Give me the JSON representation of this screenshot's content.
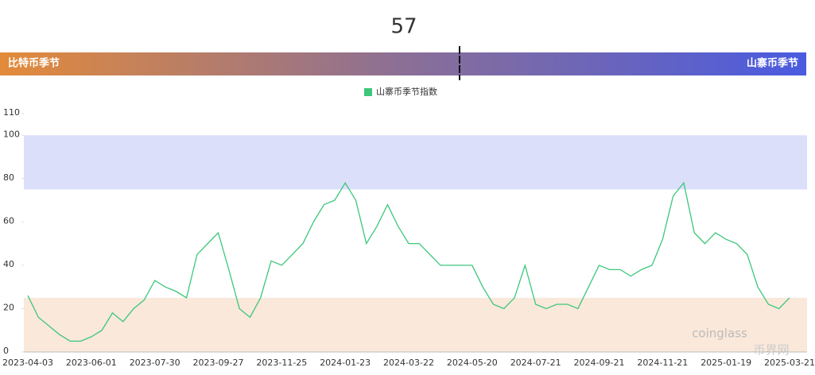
{
  "gauge": {
    "value": 57,
    "range": [
      0,
      100
    ],
    "left_label": "比特币季节",
    "right_label": "山寨币季节"
  },
  "watermarks": [
    "coinglass",
    "币界网"
  ],
  "chart_data": {
    "type": "line",
    "categories": [
      "2023-04-03",
      null,
      null,
      null,
      null,
      null,
      "2023-06-01",
      null,
      null,
      null,
      null,
      null,
      "2023-07-30",
      null,
      null,
      null,
      null,
      null,
      "2023-09-27",
      null,
      null,
      null,
      null,
      null,
      "2023-11-25",
      null,
      null,
      null,
      null,
      null,
      "2024-01-23",
      null,
      null,
      null,
      null,
      null,
      "2024-03-22",
      null,
      null,
      null,
      null,
      null,
      "2024-05-20",
      null,
      null,
      null,
      null,
      null,
      "2024-07-21",
      null,
      null,
      null,
      null,
      null,
      "2024-09-21",
      null,
      null,
      null,
      null,
      null,
      "2024-11-21",
      null,
      null,
      null,
      null,
      null,
      "2025-01-19",
      null,
      null,
      null,
      null,
      null,
      "2025-03-21"
    ],
    "series": [
      {
        "name": "山寨币季节指数",
        "color": "#3cc77a",
        "values": [
          26,
          16,
          12,
          8,
          5,
          5,
          7,
          10,
          18,
          14,
          20,
          24,
          33,
          30,
          28,
          25,
          45,
          50,
          55,
          38,
          20,
          16,
          25,
          42,
          40,
          45,
          50,
          60,
          68,
          70,
          78,
          70,
          50,
          58,
          68,
          58,
          50,
          50,
          45,
          40,
          40,
          40,
          40,
          30,
          22,
          20,
          25,
          40,
          22,
          20,
          22,
          22,
          20,
          30,
          40,
          38,
          38,
          35,
          38,
          40,
          52,
          72,
          78,
          55,
          50,
          55,
          52,
          50,
          45,
          30,
          22,
          20,
          25
        ]
      }
    ],
    "bands": [
      {
        "from": 0,
        "to": 25,
        "color": "#fae8da"
      },
      {
        "from": 75,
        "to": 100,
        "color": "#dbdffa"
      }
    ],
    "ylim": [
      0,
      110
    ],
    "yticks": [
      0,
      20,
      40,
      60,
      80,
      100,
      110
    ],
    "grid": false
  }
}
